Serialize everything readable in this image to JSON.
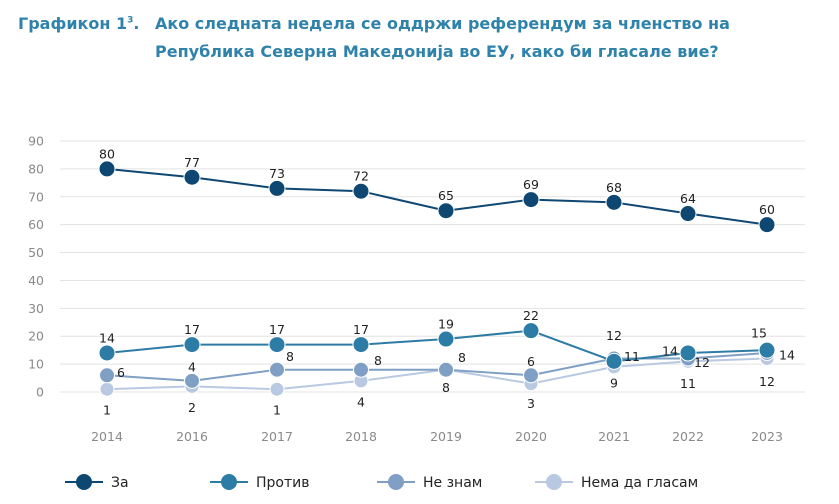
{
  "chart_data": {
    "type": "line",
    "figure_label": "Графикон 1",
    "figure_sup": "3",
    "title": "Ако следната недела се оддржи референдум за членство на Република Северна Македонија во ЕУ, како би гласале вие?",
    "categories": [
      "2014",
      "2016",
      "2017",
      "2018",
      "2019",
      "2020",
      "2021",
      "2022",
      "2023"
    ],
    "yticks": [
      "0",
      "10",
      "20",
      "30",
      "40",
      "50",
      "60",
      "70",
      "80",
      "90"
    ],
    "ylim": [
      0,
      90
    ],
    "grid": true,
    "legend_position": "bottom",
    "series": [
      {
        "name": "За",
        "color": "#0e4872",
        "values": [
          80,
          77,
          73,
          72,
          65,
          69,
          68,
          64,
          60
        ],
        "labels": [
          "80",
          "77",
          "73",
          "72",
          "65",
          "69",
          "68",
          "64",
          "60"
        ]
      },
      {
        "name": "Против",
        "color": "#2d7ca6",
        "values": [
          14,
          17,
          17,
          17,
          19,
          22,
          11,
          14,
          15
        ],
        "labels": [
          "14",
          "17",
          "17",
          "17",
          "19",
          "22",
          "11",
          "14",
          "15"
        ]
      },
      {
        "name": "Не знам",
        "color": "#7f9fc4",
        "values": [
          6,
          4,
          8,
          8,
          8,
          6,
          12,
          12,
          14
        ],
        "labels": [
          "6",
          "4",
          "8",
          "8",
          "8",
          "6",
          "12",
          "12",
          "14"
        ]
      },
      {
        "name": "Нема да гласам",
        "color": "#b9c9e2",
        "values": [
          1,
          2,
          1,
          4,
          8,
          3,
          9,
          11,
          12
        ],
        "labels": [
          "1",
          "2",
          "1",
          "4",
          "8",
          "3",
          "9",
          "11",
          "12"
        ]
      }
    ]
  }
}
